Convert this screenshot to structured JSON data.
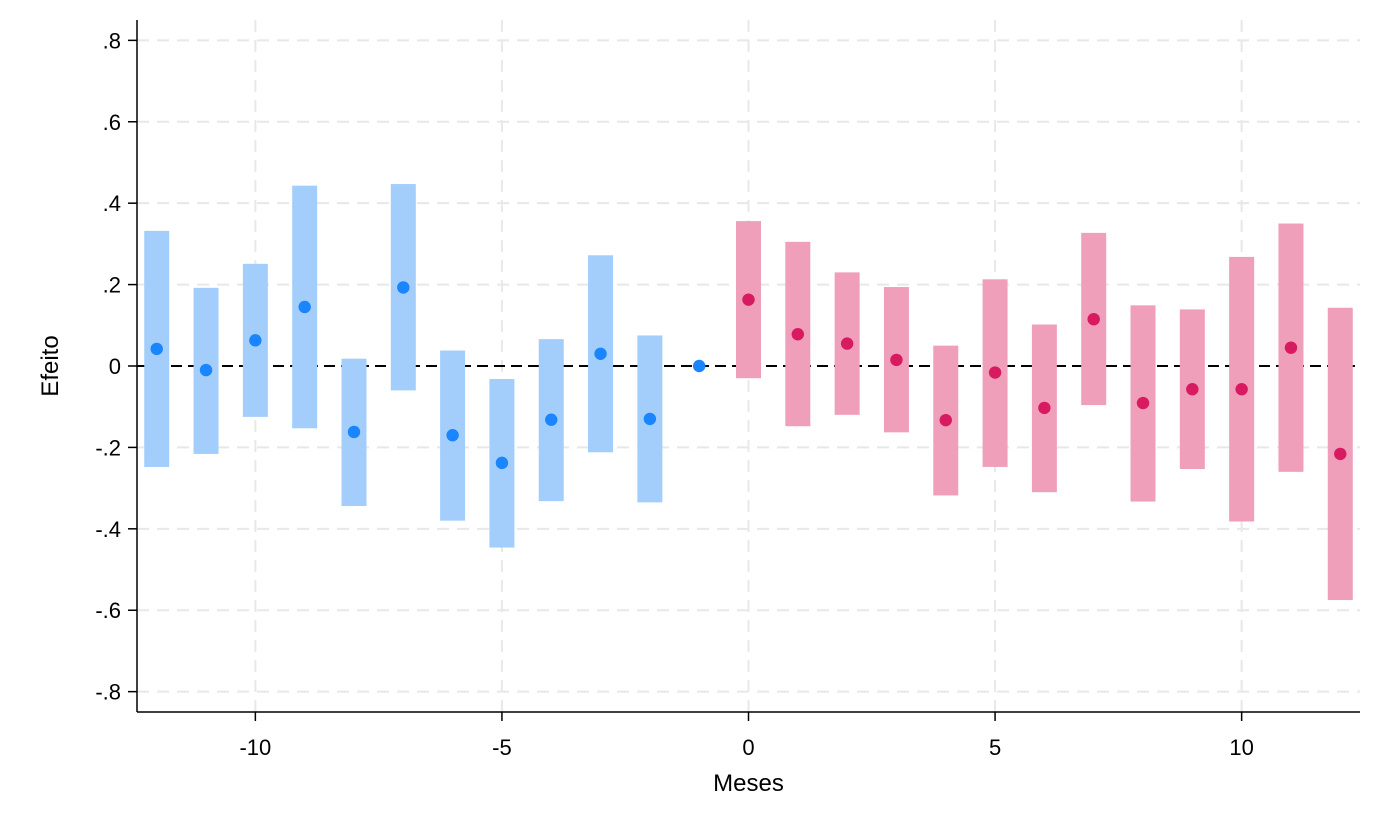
{
  "chart_data": {
    "type": "scatter",
    "title": "",
    "xlabel": "Meses",
    "ylabel": "Efeito",
    "xlim": [
      -12.4,
      12.4
    ],
    "ylim": [
      -0.85,
      0.85
    ],
    "xticks": [
      -10,
      -5,
      0,
      5,
      10
    ],
    "xtick_labels": [
      "-10",
      "-5",
      "0",
      "5",
      "10"
    ],
    "yticks": [
      0.8,
      0.6,
      0.4,
      0.2,
      0,
      -0.2,
      -0.4,
      -0.6,
      -0.8
    ],
    "ytick_labels": [
      ".8",
      ".6",
      ".4",
      ".2",
      "0",
      "-.2",
      "-.4",
      "-.6",
      "-.8"
    ],
    "grid": true,
    "zero_line": "dashed",
    "colors": {
      "pre_point": "#1a85ff",
      "pre_ci": "#a3cdfb",
      "post_point": "#d81b60",
      "post_ci": "#ef9fba"
    },
    "series": [
      {
        "x": [
          -12,
          -11,
          -10,
          -9,
          -8,
          -7,
          -6,
          -5,
          -4,
          -3,
          -2,
          -1
        ],
        "y": [
          0.042,
          -0.01,
          0.063,
          0.145,
          -0.162,
          0.193,
          -0.17,
          -0.238,
          -0.132,
          0.03,
          -0.13,
          0.0
        ],
        "ci_low": [
          -0.248,
          -0.216,
          -0.125,
          -0.153,
          -0.344,
          -0.06,
          -0.38,
          -0.446,
          -0.332,
          -0.212,
          -0.335,
          null
        ],
        "ci_high": [
          0.332,
          0.192,
          0.251,
          0.443,
          0.018,
          0.447,
          0.038,
          -0.032,
          0.066,
          0.272,
          0.075,
          null
        ]
      },
      {
        "x": [
          0,
          1,
          2,
          3,
          4,
          5,
          6,
          7,
          8,
          9,
          10,
          11,
          12
        ],
        "y": [
          0.163,
          0.078,
          0.055,
          0.015,
          -0.133,
          -0.016,
          -0.103,
          0.115,
          -0.091,
          -0.057,
          -0.057,
          0.045,
          -0.216
        ],
        "ci_low": [
          -0.03,
          -0.148,
          -0.12,
          -0.163,
          -0.318,
          -0.248,
          -0.31,
          -0.096,
          -0.333,
          -0.253,
          -0.382,
          -0.26,
          -0.575
        ],
        "ci_high": [
          0.356,
          0.305,
          0.23,
          0.194,
          0.05,
          0.213,
          0.102,
          0.327,
          0.149,
          0.139,
          0.268,
          0.35,
          0.143
        ]
      }
    ]
  }
}
